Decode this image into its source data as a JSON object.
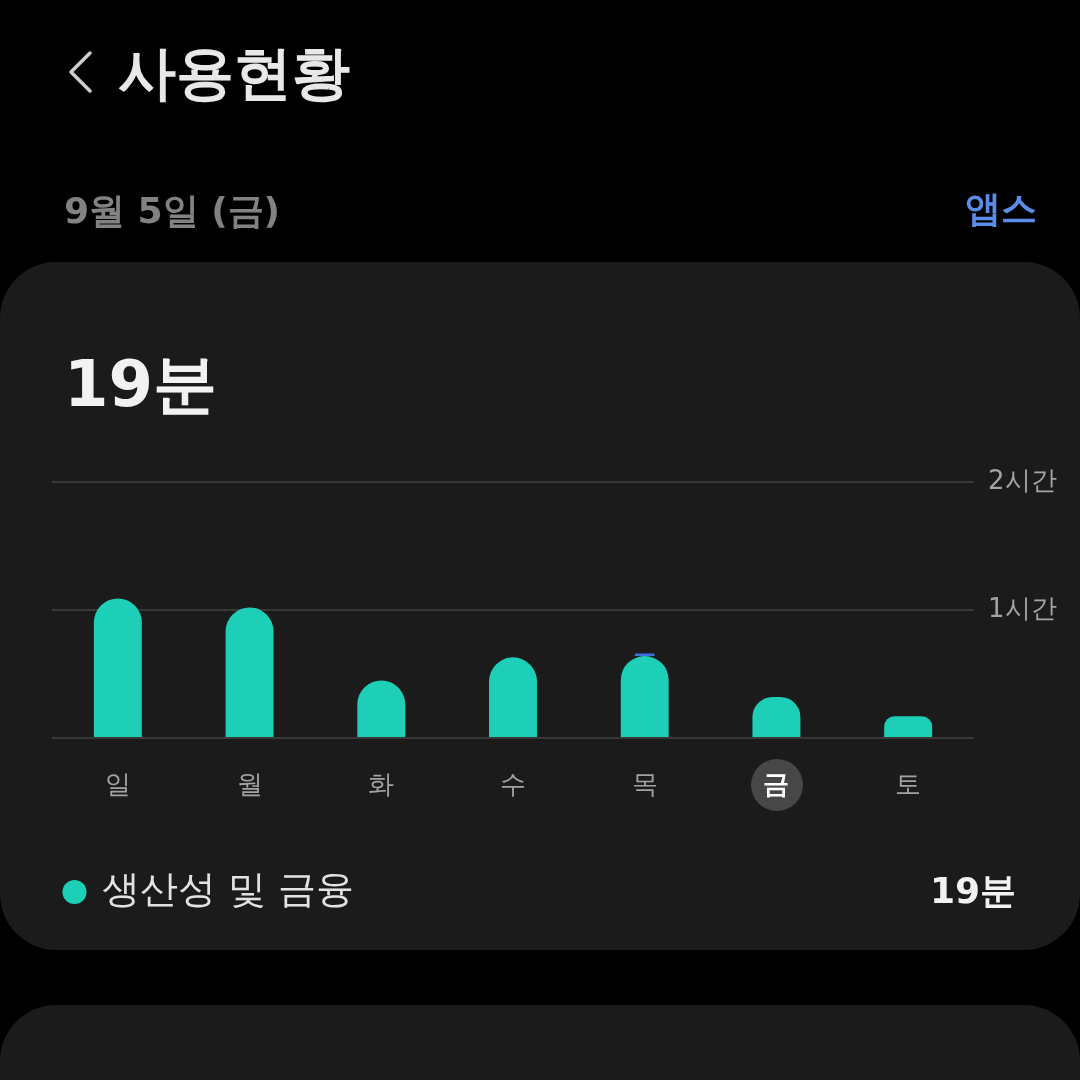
{
  "chart_data": {
    "type": "bar",
    "title": "사용현황",
    "subtitle": "9월 5일 (금)",
    "categories": [
      "일",
      "월",
      "화",
      "수",
      "목",
      "금",
      "토"
    ],
    "series": [
      {
        "name": "생산성 및 금융",
        "color": "#1ecfb7",
        "values": [
          1.09,
          1.02,
          0.45,
          0.63,
          0.64,
          0.32,
          0.17
        ]
      },
      {
        "color": "#3d6fe0",
        "values": [
          null,
          null,
          null,
          null,
          0.02,
          null,
          null
        ]
      }
    ],
    "stacked": true,
    "ylim": [
      0,
      2
    ],
    "yticks": [
      {
        "value": 0,
        "label": null
      },
      {
        "value": 1,
        "label": "1시간"
      },
      {
        "value": 2,
        "label": "2시간"
      }
    ],
    "grid": "y",
    "legend": "bottom left",
    "annotations": [
      "앱스",
      "19분",
      "19분"
    ]
  }
}
